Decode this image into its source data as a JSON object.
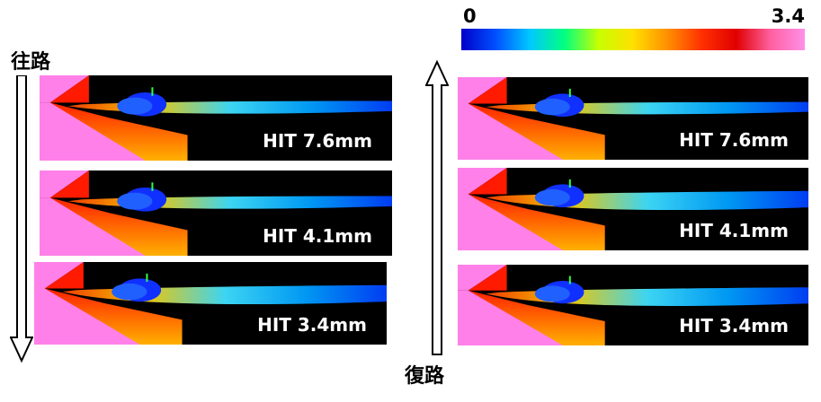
{
  "colorbar": {
    "min_label": "0",
    "max_label": "3.4",
    "stops": [
      "#0000c8",
      "#0050ff",
      "#00c8ff",
      "#00ff80",
      "#c8ff00",
      "#ffe000",
      "#ff9000",
      "#ff3000",
      "#e00000",
      "#ff60a0",
      "#ff90e8"
    ]
  },
  "outbound": {
    "label": "往路",
    "panels": [
      {
        "hit_label": "HIT 7.6mm"
      },
      {
        "hit_label": "HIT 4.1mm"
      },
      {
        "hit_label": "HIT 3.4mm"
      }
    ]
  },
  "return": {
    "label": "復路",
    "panels": [
      {
        "hit_label": "HIT 7.6mm"
      },
      {
        "hit_label": "HIT 4.1mm"
      },
      {
        "hit_label": "HIT 3.4mm"
      }
    ]
  },
  "colors": {
    "background": "#ffffff",
    "flow_pink": "#ff80e8",
    "flow_red": "#ff1a00",
    "flow_blue": "#0020ff",
    "text": "#000000"
  }
}
